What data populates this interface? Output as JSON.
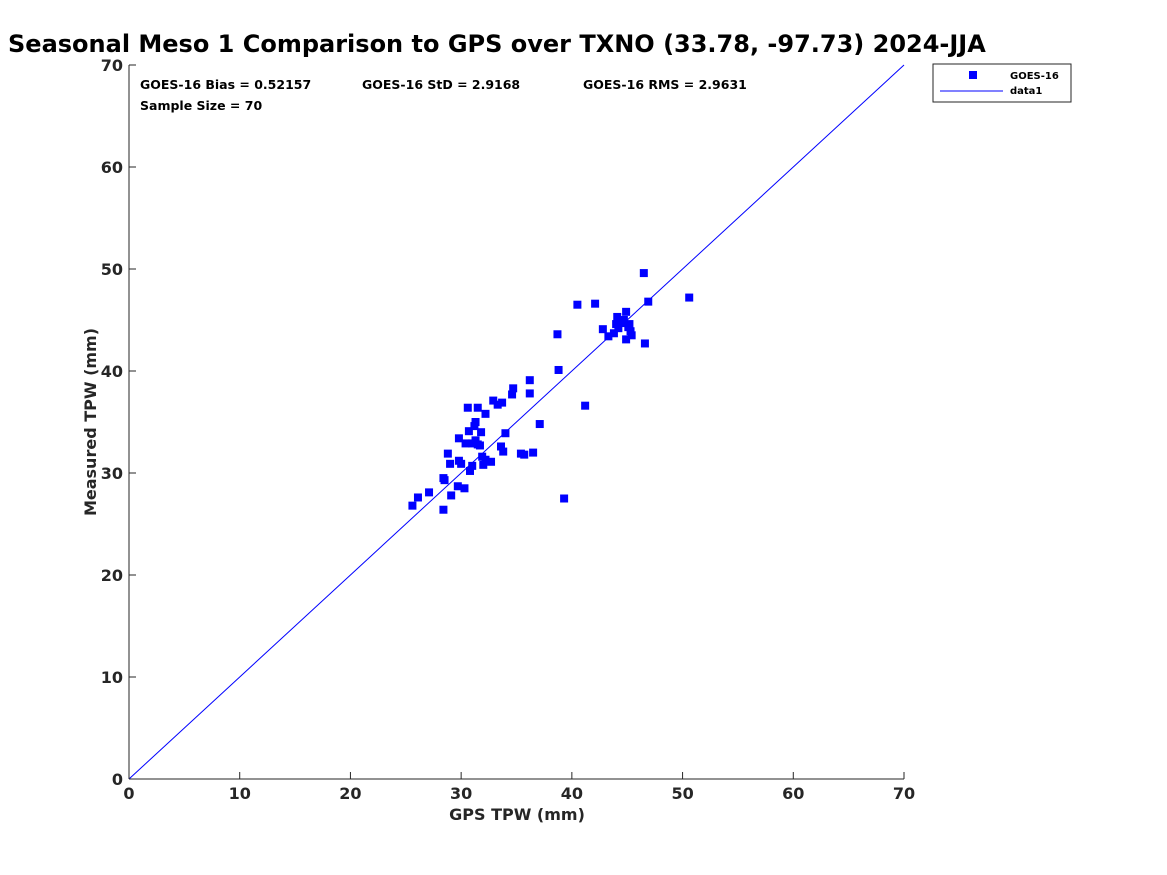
{
  "chart_data": {
    "type": "scatter",
    "title": "Seasonal Meso 1 Comparison to GPS over TXNO (33.78, -97.73) 2024-JJA",
    "xlabel": "GPS TPW (mm)",
    "ylabel": "Measured TPW (mm)",
    "xlim": [
      0,
      70
    ],
    "ylim": [
      0,
      70
    ],
    "xticks": [
      "0",
      "10",
      "20",
      "30",
      "40",
      "50",
      "60",
      "70"
    ],
    "yticks": [
      "0",
      "10",
      "20",
      "30",
      "40",
      "50",
      "60",
      "70"
    ],
    "grid": false,
    "legend": "top-right",
    "annotations": {
      "bias": "GOES-16 Bias = 0.52157",
      "std": "GOES-16 StD = 2.9168",
      "rms": "GOES-16 RMS = 2.9631",
      "sample": "Sample Size = 70"
    },
    "series": [
      {
        "name": "GOES-16",
        "kind": "scatter",
        "marker": "square",
        "color": "#0000ff",
        "points": [
          [
            25.6,
            26.8
          ],
          [
            26.1,
            27.6
          ],
          [
            27.1,
            28.1
          ],
          [
            28.4,
            26.4
          ],
          [
            28.4,
            29.5
          ],
          [
            28.5,
            29.3
          ],
          [
            28.8,
            31.9
          ],
          [
            29.0,
            30.9
          ],
          [
            29.1,
            27.8
          ],
          [
            29.7,
            28.7
          ],
          [
            29.8,
            31.2
          ],
          [
            29.8,
            33.4
          ],
          [
            30.0,
            30.9
          ],
          [
            30.3,
            28.5
          ],
          [
            30.4,
            32.9
          ],
          [
            30.6,
            36.4
          ],
          [
            30.7,
            34.1
          ],
          [
            30.8,
            30.2
          ],
          [
            31.0,
            30.7
          ],
          [
            31.0,
            32.9
          ],
          [
            31.2,
            34.6
          ],
          [
            31.3,
            33.2
          ],
          [
            31.3,
            35.0
          ],
          [
            31.5,
            32.8
          ],
          [
            31.5,
            36.4
          ],
          [
            31.7,
            32.7
          ],
          [
            31.8,
            34.0
          ],
          [
            31.9,
            31.6
          ],
          [
            32.0,
            30.8
          ],
          [
            32.2,
            31.3
          ],
          [
            32.2,
            35.8
          ],
          [
            32.7,
            31.1
          ],
          [
            32.9,
            37.1
          ],
          [
            33.3,
            36.7
          ],
          [
            33.6,
            32.6
          ],
          [
            33.7,
            36.9
          ],
          [
            33.8,
            32.1
          ],
          [
            34.0,
            33.9
          ],
          [
            34.6,
            37.7
          ],
          [
            34.7,
            38.3
          ],
          [
            35.4,
            31.9
          ],
          [
            35.7,
            31.8
          ],
          [
            36.2,
            37.8
          ],
          [
            36.2,
            39.1
          ],
          [
            36.5,
            32.0
          ],
          [
            37.1,
            34.8
          ],
          [
            38.7,
            43.6
          ],
          [
            38.8,
            40.1
          ],
          [
            39.3,
            27.5
          ],
          [
            40.5,
            46.5
          ],
          [
            41.2,
            36.6
          ],
          [
            42.1,
            46.6
          ],
          [
            42.8,
            44.1
          ],
          [
            43.3,
            43.4
          ],
          [
            43.8,
            43.7
          ],
          [
            44.0,
            44.6
          ],
          [
            44.1,
            45.3
          ],
          [
            44.2,
            44.2
          ],
          [
            44.5,
            44.7
          ],
          [
            44.7,
            45.0
          ],
          [
            44.9,
            43.1
          ],
          [
            44.9,
            45.8
          ],
          [
            45.1,
            44.3
          ],
          [
            45.2,
            44.6
          ],
          [
            45.3,
            43.9
          ],
          [
            45.4,
            43.5
          ],
          [
            46.5,
            49.6
          ],
          [
            46.6,
            42.7
          ],
          [
            46.9,
            46.8
          ],
          [
            50.6,
            47.2
          ]
        ]
      },
      {
        "name": "data1",
        "kind": "line",
        "color": "#0000ff",
        "x": [
          0,
          70
        ],
        "y": [
          0,
          70
        ]
      }
    ]
  }
}
